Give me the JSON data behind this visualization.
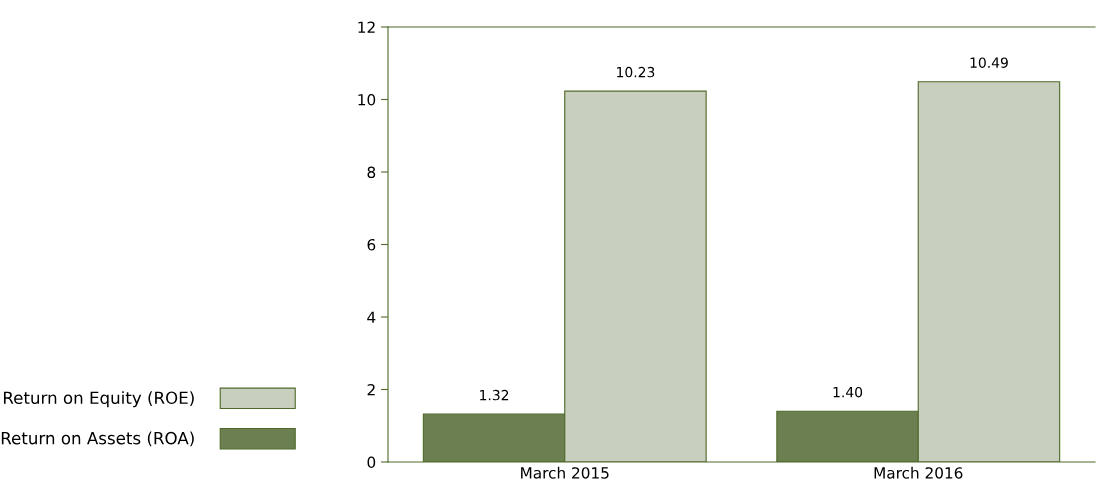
{
  "chart_data": {
    "type": "bar",
    "categories": [
      "March 2015",
      "March 2016"
    ],
    "series": [
      {
        "name": "Return on Assets (ROA)",
        "color": "#6b7f50",
        "values": [
          1.32,
          1.4
        ],
        "value_labels": [
          "1.32",
          "1.40"
        ]
      },
      {
        "name": "Return on Equity (ROE)",
        "color": "#c8cfbe",
        "values": [
          10.23,
          10.49
        ],
        "value_labels": [
          "10.23",
          "10.49"
        ]
      }
    ],
    "ylim": [
      0,
      12
    ],
    "yticks": [
      0,
      2,
      4,
      6,
      8,
      10,
      12
    ],
    "grid": false,
    "legend": "left"
  }
}
